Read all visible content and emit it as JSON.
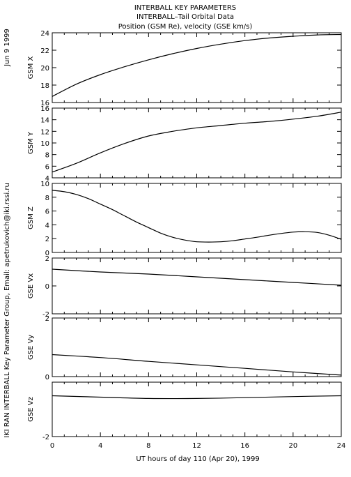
{
  "header": {
    "title_lines": [
      "INTERBALL KEY PARAMETERS",
      "INTERBALL–Tail Orbital Data",
      "Position (GSM Re), velocity (GSE km/s)"
    ],
    "date_stamp": "Jun  9 1999",
    "credit": "IKI RAN INTERBALL Key Parameter Group, Email: apetrukovich@iki.rssi.ru"
  },
  "colors": {
    "line": "#000000",
    "background": "#ffffff"
  },
  "chart_data": [
    {
      "type": "line",
      "ylabel": "GSM X",
      "ylim": [
        16,
        24
      ],
      "yticks": [
        16,
        18,
        20,
        22,
        24
      ],
      "xlim": [
        0,
        24
      ],
      "x": [
        0,
        2,
        4,
        6,
        8,
        10,
        12,
        14,
        16,
        18,
        20,
        22,
        24
      ],
      "values": [
        16.7,
        18.1,
        19.2,
        20.1,
        20.9,
        21.6,
        22.2,
        22.7,
        23.1,
        23.4,
        23.6,
        23.75,
        23.8
      ]
    },
    {
      "type": "line",
      "ylabel": "GSM Y",
      "ylim": [
        4,
        16
      ],
      "yticks": [
        4,
        6,
        8,
        10,
        12,
        14,
        16
      ],
      "xlim": [
        0,
        24
      ],
      "x": [
        0,
        2,
        4,
        6,
        8,
        10,
        12,
        14,
        16,
        18,
        20,
        22,
        24
      ],
      "values": [
        5.0,
        6.5,
        8.3,
        9.9,
        11.2,
        12.0,
        12.6,
        13.0,
        13.4,
        13.7,
        14.1,
        14.6,
        15.3
      ]
    },
    {
      "type": "line",
      "ylabel": "GSM Z",
      "ylim": [
        0,
        10
      ],
      "yticks": [
        0,
        2,
        4,
        6,
        8,
        10
      ],
      "xlim": [
        0,
        24
      ],
      "x": [
        0,
        1,
        2,
        3,
        4,
        5,
        6,
        7,
        8,
        9,
        10,
        11,
        12,
        13,
        14,
        15,
        16,
        17,
        18,
        19,
        20,
        21,
        22,
        23,
        24
      ],
      "values": [
        9.0,
        8.8,
        8.4,
        7.8,
        7.0,
        6.2,
        5.3,
        4.4,
        3.6,
        2.8,
        2.2,
        1.8,
        1.55,
        1.5,
        1.55,
        1.7,
        1.95,
        2.2,
        2.5,
        2.75,
        2.95,
        3.0,
        2.9,
        2.5,
        1.9
      ]
    },
    {
      "type": "line",
      "ylabel": "GSE Vx",
      "ylim": [
        -2,
        2
      ],
      "yticks": [
        -2,
        0,
        2
      ],
      "xlim": [
        0,
        24
      ],
      "x": [
        0,
        4,
        8,
        12,
        16,
        20,
        24
      ],
      "values": [
        1.2,
        1.0,
        0.85,
        0.65,
        0.45,
        0.25,
        0.05
      ]
    },
    {
      "type": "line",
      "ylabel": "GSE Vy",
      "ylim": [
        0,
        2
      ],
      "yticks": [
        0,
        2
      ],
      "xlim": [
        0,
        24
      ],
      "x": [
        0,
        4,
        8,
        12,
        16,
        20,
        24
      ],
      "values": [
        0.75,
        0.65,
        0.52,
        0.4,
        0.28,
        0.16,
        0.05
      ]
    },
    {
      "type": "line",
      "ylabel": "GSE Vz",
      "ylim": [
        -2,
        0
      ],
      "yticks": [
        -2
      ],
      "xlim": [
        0,
        24
      ],
      "x": [
        0,
        4,
        8,
        12,
        16,
        20,
        24
      ],
      "values": [
        -0.5,
        -0.55,
        -0.6,
        -0.6,
        -0.57,
        -0.53,
        -0.5
      ]
    }
  ],
  "xaxis": {
    "ticks": [
      0,
      4,
      8,
      12,
      16,
      20,
      24
    ],
    "tick_labels": [
      "0",
      "4",
      "8",
      "12",
      "16",
      "20",
      "24"
    ],
    "label": "UT hours of day 110 (Apr 20), 1999"
  }
}
